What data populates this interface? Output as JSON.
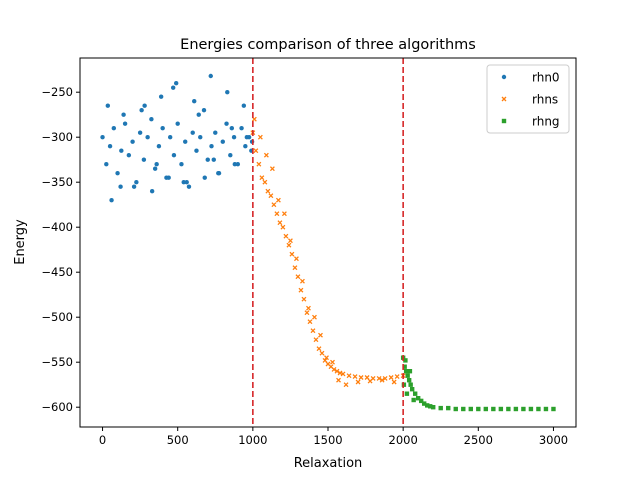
{
  "chart_data": {
    "type": "scatter",
    "title": "Energies comparison of three algorithms",
    "xlabel": "Relaxation",
    "ylabel": "Energy",
    "xlim": [
      -150,
      3150
    ],
    "ylim": [
      -622,
      -212
    ],
    "xticks": [
      0,
      500,
      1000,
      1500,
      2000,
      2500,
      3000
    ],
    "yticks": [
      -600,
      -550,
      -500,
      -450,
      -400,
      -350,
      -300,
      -250
    ],
    "grid": false,
    "legend_position": "top-right",
    "vlines": [
      {
        "x": 1000,
        "color": "#d62728",
        "style": "dashed"
      },
      {
        "x": 2000,
        "color": "#d62728",
        "style": "dashed"
      }
    ],
    "series": [
      {
        "name": "rhn0",
        "marker": "circle",
        "color": "#1f77b4",
        "x": [
          0,
          25,
          50,
          75,
          100,
          125,
          150,
          175,
          200,
          225,
          250,
          275,
          300,
          325,
          350,
          375,
          400,
          425,
          450,
          475,
          500,
          525,
          550,
          575,
          600,
          625,
          650,
          675,
          700,
          725,
          750,
          775,
          800,
          825,
          850,
          875,
          900,
          925,
          950,
          975,
          995,
          60,
          140,
          210,
          280,
          330,
          390,
          440,
          490,
          560,
          610,
          680,
          720,
          770,
          830,
          880,
          940,
          990,
          35,
          120,
          260,
          360,
          470,
          540,
          640,
          740,
          860,
          960
        ],
        "y": [
          -300,
          -330,
          -310,
          -290,
          -340,
          -315,
          -285,
          -320,
          -305,
          -350,
          -295,
          -325,
          -300,
          -280,
          -335,
          -310,
          -290,
          -345,
          -300,
          -320,
          -285,
          -330,
          -305,
          -355,
          -295,
          -315,
          -300,
          -270,
          -325,
          -310,
          -295,
          -340,
          -305,
          -285,
          -320,
          -300,
          -330,
          -290,
          -310,
          -300,
          -305,
          -370,
          -275,
          -355,
          -265,
          -360,
          -255,
          -345,
          -240,
          -350,
          -260,
          -345,
          -232,
          -340,
          -250,
          -330,
          -265,
          -315,
          -265,
          -355,
          -270,
          -330,
          -245,
          -350,
          -275,
          -325,
          -290,
          -300
        ]
      },
      {
        "name": "rhns",
        "marker": "x",
        "color": "#ff7f0e",
        "x": [
          1000,
          1020,
          1040,
          1060,
          1080,
          1100,
          1120,
          1140,
          1160,
          1180,
          1200,
          1220,
          1240,
          1260,
          1280,
          1300,
          1320,
          1340,
          1360,
          1380,
          1400,
          1420,
          1440,
          1460,
          1480,
          1500,
          1520,
          1540,
          1560,
          1580,
          1600,
          1640,
          1680,
          1720,
          1760,
          1800,
          1840,
          1880,
          1920,
          1960,
          2000,
          1010,
          1050,
          1090,
          1130,
          1170,
          1210,
          1250,
          1290,
          1330,
          1370,
          1410,
          1450,
          1490,
          1530,
          1570,
          1620,
          1700,
          1780,
          1860,
          1940
        ],
        "y": [
          -295,
          -315,
          -330,
          -345,
          -350,
          -360,
          -365,
          -375,
          -385,
          -395,
          -400,
          -410,
          -420,
          -430,
          -445,
          -455,
          -470,
          -480,
          -495,
          -505,
          -515,
          -525,
          -535,
          -540,
          -548,
          -552,
          -555,
          -558,
          -560,
          -562,
          -563,
          -565,
          -566,
          -567,
          -567,
          -568,
          -568,
          -568,
          -567,
          -566,
          -565,
          -280,
          -300,
          -320,
          -335,
          -370,
          -385,
          -415,
          -435,
          -460,
          -490,
          -500,
          -520,
          -545,
          -550,
          -570,
          -575,
          -572,
          -571,
          -570,
          -572
        ]
      },
      {
        "name": "rhng",
        "marker": "square",
        "color": "#2ca02c",
        "x": [
          2000,
          2010,
          2020,
          2030,
          2040,
          2050,
          2060,
          2080,
          2100,
          2120,
          2140,
          2160,
          2180,
          2200,
          2250,
          2300,
          2350,
          2400,
          2450,
          2500,
          2550,
          2600,
          2650,
          2700,
          2750,
          2800,
          2850,
          2900,
          2950,
          3000,
          2005,
          2015,
          2025,
          2045,
          2070
        ],
        "y": [
          -545,
          -555,
          -560,
          -565,
          -570,
          -575,
          -580,
          -585,
          -590,
          -593,
          -596,
          -598,
          -599,
          -600,
          -601,
          -601,
          -602,
          -602,
          -602,
          -602,
          -602,
          -602,
          -602,
          -602,
          -602,
          -602,
          -602,
          -602,
          -602,
          -602,
          -575,
          -548,
          -585,
          -560,
          -592
        ]
      }
    ]
  }
}
